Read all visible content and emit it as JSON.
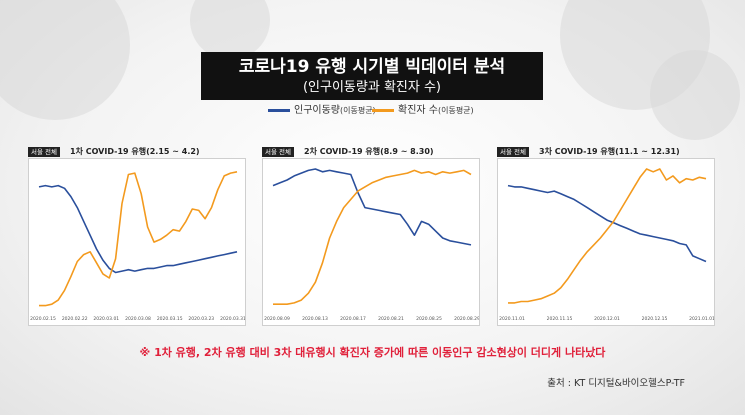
{
  "title": {
    "line1": "코로나19 유행 시기별 빅데이터 분석",
    "line2": "(인구이동량과 확진자 수)"
  },
  "legend": [
    {
      "label": "인구이동량",
      "sub": "(이동평균)",
      "color": "#2a4f9c"
    },
    {
      "label": "확진자 수",
      "sub": "(이동평균)",
      "color": "#f39a1e"
    }
  ],
  "note": "※ 1차 유행, 2차 유행 대비 3차 대유행시 확진자 증가에 따른 이동인구 감소현상이 더디게 나타났다",
  "source": "출처 : KT 디지털&바이오헬스P-TF",
  "chart_data": [
    {
      "type": "line",
      "badge": "서울 전체",
      "title": "1차 COVID-19 유행(2.15 ~ 4.2)",
      "x_ticks": [
        "2020.02.15",
        "2020.02.22",
        "2020.03.01",
        "2020.03.08",
        "2020.03.15",
        "2020.03.23",
        "2020.03.31"
      ],
      "series": [
        {
          "name": "인구이동량",
          "color": "#2a4f9c",
          "values": [
            0.87,
            0.88,
            0.87,
            0.88,
            0.86,
            0.8,
            0.72,
            0.62,
            0.52,
            0.42,
            0.34,
            0.28,
            0.25,
            0.26,
            0.27,
            0.26,
            0.27,
            0.28,
            0.28,
            0.29,
            0.3,
            0.3,
            0.31,
            0.32,
            0.33,
            0.34,
            0.35,
            0.36,
            0.37,
            0.38,
            0.39,
            0.4
          ]
        },
        {
          "name": "확진자 수",
          "color": "#f39a1e",
          "values": [
            0.01,
            0.01,
            0.02,
            0.05,
            0.12,
            0.22,
            0.33,
            0.38,
            0.4,
            0.32,
            0.24,
            0.21,
            0.35,
            0.75,
            0.96,
            0.97,
            0.82,
            0.58,
            0.47,
            0.49,
            0.52,
            0.56,
            0.55,
            0.62,
            0.71,
            0.7,
            0.64,
            0.72,
            0.85,
            0.95,
            0.97,
            0.98
          ]
        }
      ]
    },
    {
      "type": "line",
      "badge": "서울 전체",
      "title": "2차 COVID-19 유행(8.9 ~ 8.30)",
      "x_ticks": [
        "2020.08.09",
        "2020.08.13",
        "2020.08.17",
        "2020.08.21",
        "2020.08.25",
        "2020.08.29"
      ],
      "series": [
        {
          "name": "인구이동량",
          "color": "#2a4f9c",
          "values": [
            0.88,
            0.9,
            0.92,
            0.95,
            0.97,
            0.99,
            1.0,
            0.98,
            0.99,
            0.98,
            0.97,
            0.96,
            0.83,
            0.72,
            0.71,
            0.7,
            0.69,
            0.68,
            0.67,
            0.6,
            0.52,
            0.62,
            0.6,
            0.55,
            0.5,
            0.48,
            0.47,
            0.46,
            0.45
          ]
        },
        {
          "name": "확진자 수",
          "color": "#f39a1e",
          "values": [
            0.02,
            0.02,
            0.02,
            0.03,
            0.05,
            0.1,
            0.18,
            0.32,
            0.5,
            0.62,
            0.72,
            0.78,
            0.84,
            0.87,
            0.9,
            0.92,
            0.94,
            0.95,
            0.96,
            0.97,
            0.99,
            0.97,
            0.98,
            0.96,
            0.98,
            0.97,
            0.98,
            0.99,
            0.96
          ]
        }
      ]
    },
    {
      "type": "line",
      "badge": "서울 전체",
      "title": "3차 COVID-19 유행(11.1 ~ 12.31)",
      "x_ticks": [
        "2020.11.01",
        "2020.11.15",
        "2020.12.01",
        "2020.12.15",
        "2021.01.01"
      ],
      "series": [
        {
          "name": "인구이동량",
          "color": "#2a4f9c",
          "values": [
            0.88,
            0.87,
            0.87,
            0.86,
            0.85,
            0.84,
            0.83,
            0.84,
            0.82,
            0.8,
            0.78,
            0.75,
            0.72,
            0.69,
            0.66,
            0.63,
            0.61,
            0.59,
            0.57,
            0.55,
            0.53,
            0.52,
            0.51,
            0.5,
            0.49,
            0.48,
            0.46,
            0.45,
            0.37,
            0.35,
            0.33
          ]
        },
        {
          "name": "확진자 수",
          "color": "#f39a1e",
          "values": [
            0.03,
            0.03,
            0.04,
            0.04,
            0.05,
            0.06,
            0.08,
            0.1,
            0.14,
            0.2,
            0.27,
            0.34,
            0.4,
            0.45,
            0.5,
            0.56,
            0.62,
            0.7,
            0.78,
            0.86,
            0.94,
            1.0,
            0.98,
            1.0,
            0.92,
            0.95,
            0.9,
            0.93,
            0.92,
            0.94,
            0.93
          ]
        }
      ]
    }
  ]
}
